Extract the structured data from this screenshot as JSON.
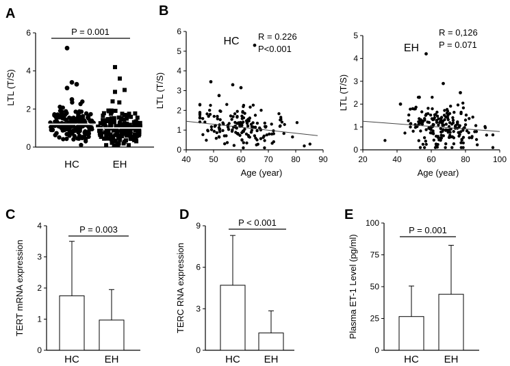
{
  "figure": {
    "panel_letters": [
      "A",
      "B",
      "C",
      "D",
      "E"
    ]
  },
  "chart_data": [
    {
      "id": "A",
      "type": "scatter",
      "title": "",
      "ylabel": "LTL (T/S)",
      "xlabel": "",
      "categories": [
        "HC",
        "EH"
      ],
      "ylim": [
        0,
        6
      ],
      "yticks": [
        "0",
        "2",
        "4",
        "6"
      ],
      "annotation": "P = 0.001",
      "means": [
        1.2,
        1.0
      ],
      "outliers": {
        "HC": [
          5.2,
          3.4,
          3.3,
          3.1,
          2.5
        ],
        "EH": [
          4.2,
          3.6,
          3.0,
          2.9
        ]
      }
    },
    {
      "id": "B1",
      "type": "scatter",
      "title": "HC",
      "xlabel": "Age (year)",
      "ylabel": "LTL (T/S)",
      "xlim": [
        40,
        90
      ],
      "ylim": [
        0,
        6
      ],
      "xticks": [
        "40",
        "50",
        "60",
        "70",
        "80",
        "90"
      ],
      "yticks": [
        "0",
        "1",
        "2",
        "3",
        "4",
        "5",
        "6"
      ],
      "stats": [
        "R = 0.226",
        "P<0.001"
      ],
      "trend": [
        [
          40,
          1.45
        ],
        [
          88,
          0.72
        ]
      ],
      "outliers": [
        [
          65,
          5.3
        ],
        [
          49,
          3.45
        ],
        [
          57,
          3.3
        ],
        [
          60,
          3.15
        ],
        [
          52,
          2.75
        ]
      ]
    },
    {
      "id": "B2",
      "type": "scatter",
      "title": "EH",
      "xlabel": "Age (year)",
      "ylabel": "LTL (T/S)",
      "xlim": [
        20,
        100
      ],
      "ylim": [
        0,
        5
      ],
      "xticks": [
        "20",
        "40",
        "60",
        "80",
        "100"
      ],
      "yticks": [
        "0",
        "1",
        "2",
        "3",
        "4",
        "5"
      ],
      "stats": [
        "R = 0,126",
        "P = 0.071"
      ],
      "trend": [
        [
          20,
          1.25
        ],
        [
          100,
          0.8
        ]
      ],
      "outliers": [
        [
          57,
          4.2
        ],
        [
          67,
          2.9
        ],
        [
          77,
          2.5
        ],
        [
          53,
          2.3
        ],
        [
          42,
          2.0
        ]
      ]
    },
    {
      "id": "C",
      "type": "bar",
      "xlabel": "",
      "ylabel": "TERT mRNA expression",
      "categories": [
        "HC",
        "EH"
      ],
      "values": [
        1.75,
        0.97
      ],
      "errors": [
        1.75,
        0.98
      ],
      "ylim": [
        0,
        4
      ],
      "yticks": [
        "0",
        "1",
        "2",
        "3",
        "4"
      ],
      "annotation": "P = 0.003"
    },
    {
      "id": "D",
      "type": "bar",
      "xlabel": "",
      "ylabel": "TERC RNA expression",
      "categories": [
        "HC",
        "EH"
      ],
      "values": [
        4.7,
        1.25
      ],
      "errors": [
        3.6,
        1.6
      ],
      "ylim": [
        0,
        9
      ],
      "yticks": [
        "0",
        "3",
        "6",
        "9"
      ],
      "annotation": "P < 0.001"
    },
    {
      "id": "E",
      "type": "bar",
      "xlabel": "",
      "ylabel": "Plasma ET-1 Level (pg/ml)",
      "categories": [
        "HC",
        "EH"
      ],
      "values": [
        26.5,
        44.0
      ],
      "errors": [
        24.0,
        38.5
      ],
      "ylim": [
        0,
        100
      ],
      "yticks": [
        "0",
        "25",
        "50",
        "75",
        "100"
      ],
      "annotation": "P = 0.001"
    }
  ]
}
